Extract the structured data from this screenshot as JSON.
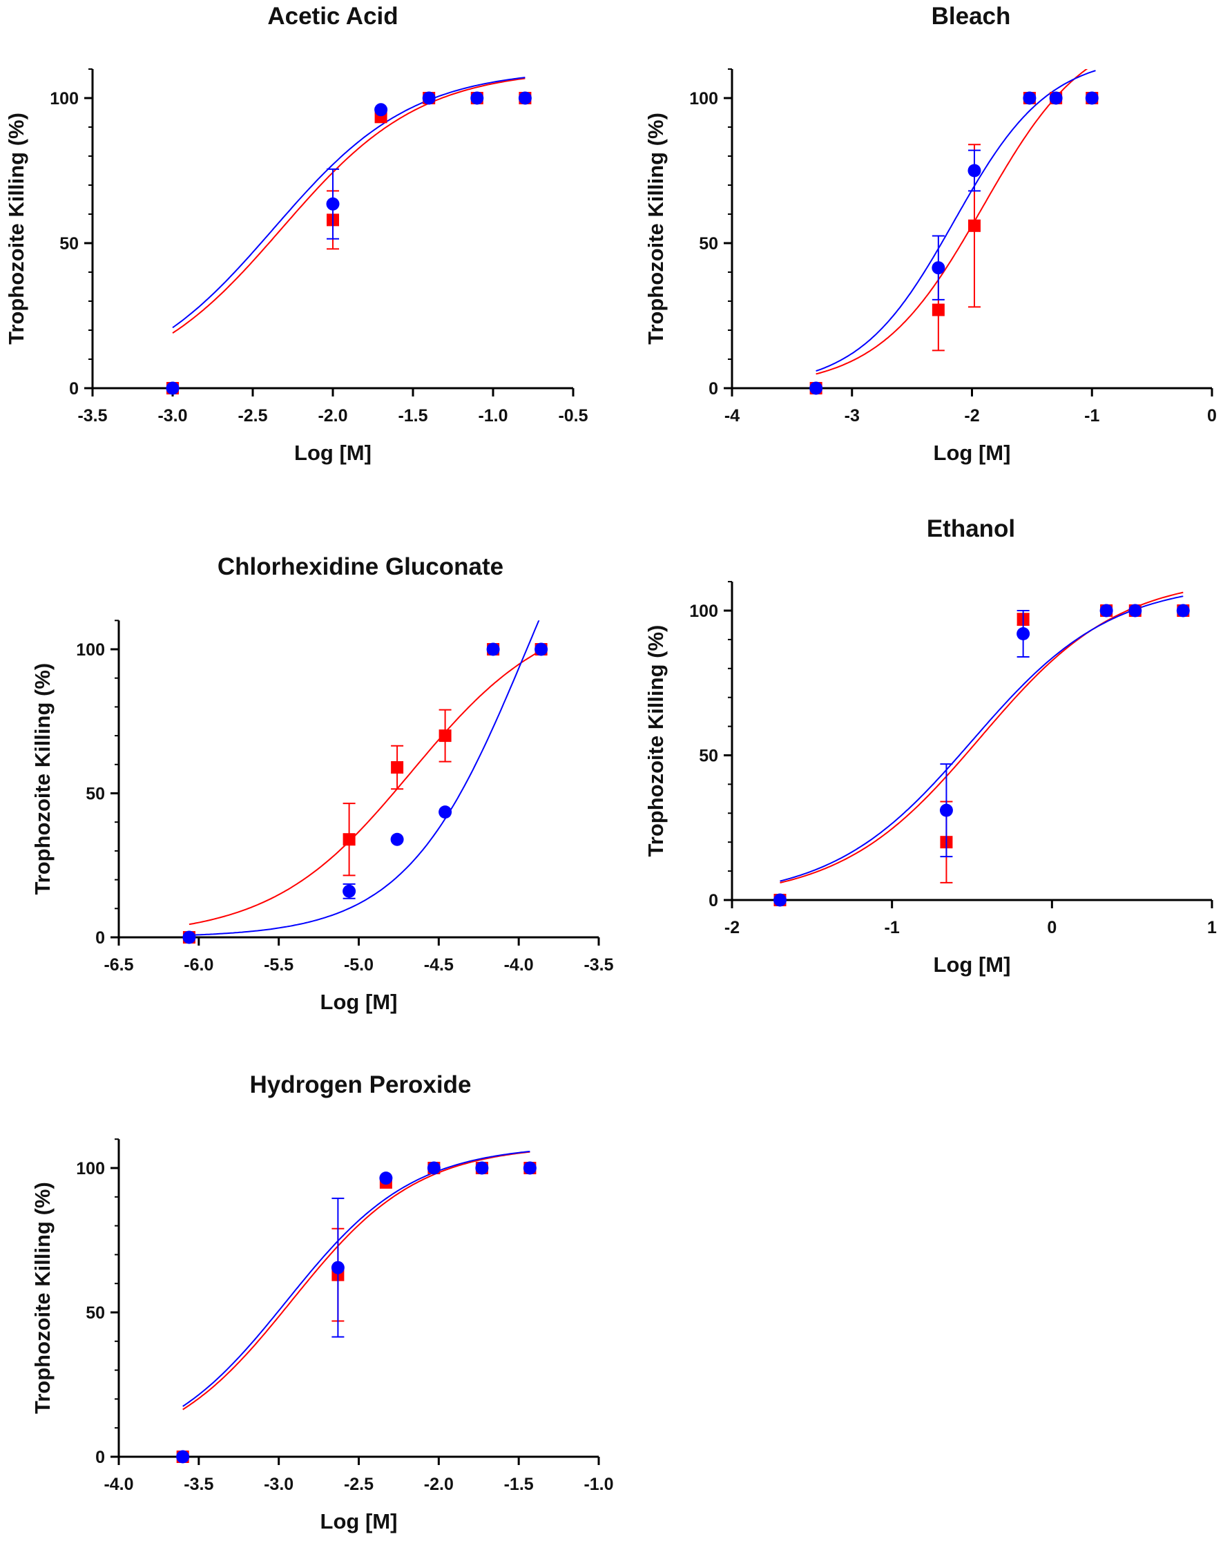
{
  "colors": {
    "series_a": "#ff0000",
    "series_b": "#0000ff",
    "axis": "#000000",
    "text": "#111111"
  },
  "chart_data": [
    {
      "type": "scatter",
      "title": "Acetic Acid",
      "xlabel": "Log [M]",
      "ylabel": "Trophozoite Killing (%)",
      "xlim": [
        -3.5,
        -0.5
      ],
      "ylim": [
        0,
        110
      ],
      "x_ticks": [
        -3.5,
        -3.0,
        -2.5,
        -2.0,
        -1.5,
        -1.0,
        -0.5
      ],
      "x_tick_labels": [
        "-3.5",
        "-3.0",
        "-2.5",
        "-2.0",
        "-1.5",
        "-1.0",
        "-0.5"
      ],
      "y_ticks": [
        0,
        50,
        100
      ],
      "y_tick_labels": [
        "0",
        "50",
        "100"
      ],
      "series": [
        {
          "name": "red",
          "marker": "square",
          "x": [
            -3.0,
            -2.0,
            -1.7,
            -1.4,
            -1.1,
            -0.8
          ],
          "y": [
            0,
            58,
            93.5,
            100,
            100,
            100
          ],
          "err": [
            0,
            10,
            0,
            0,
            0,
            0
          ],
          "fit_x": [
            -3.0,
            -0.8
          ],
          "fit": {
            "bottom": 0,
            "top": 110,
            "log_ec50": -2.32,
            "hill": 1.0
          }
        },
        {
          "name": "blue",
          "marker": "circle",
          "x": [
            -3.0,
            -2.0,
            -1.7,
            -1.4,
            -1.1,
            -0.8
          ],
          "y": [
            0,
            63.5,
            96,
            100,
            100,
            100
          ],
          "err": [
            0,
            12,
            0,
            0,
            0,
            0
          ],
          "fit_x": [
            -3.0,
            -0.8
          ],
          "fit": {
            "bottom": 0,
            "top": 110,
            "log_ec50": -2.37,
            "hill": 1.0
          }
        }
      ]
    },
    {
      "type": "scatter",
      "title": "Bleach",
      "xlabel": "Log [M]",
      "ylabel": "Trophozoite Killing (%)",
      "xlim": [
        -4,
        0
      ],
      "ylim": [
        0,
        110
      ],
      "x_ticks": [
        -4,
        -3,
        -2,
        -1,
        0
      ],
      "x_tick_labels": [
        "-4",
        "-3",
        "-2",
        "-1",
        "0"
      ],
      "y_ticks": [
        0,
        50,
        100
      ],
      "y_tick_labels": [
        "0",
        "50",
        "100"
      ],
      "series": [
        {
          "name": "red",
          "marker": "square",
          "x": [
            -3.3,
            -2.28,
            -1.98,
            -1.52,
            -1.3,
            -1.0
          ],
          "y": [
            0,
            27,
            56,
            100,
            100,
            100
          ],
          "err": [
            0,
            14,
            28,
            0,
            0,
            0
          ],
          "fit_x": [
            -3.3,
            -0.97
          ],
          "fit": {
            "bottom": 0,
            "top": 125,
            "log_ec50": -1.91,
            "hill": 1.0
          }
        },
        {
          "name": "blue",
          "marker": "circle",
          "x": [
            -3.3,
            -2.28,
            -1.98,
            -1.52,
            -1.3,
            -1.0
          ],
          "y": [
            0,
            41.5,
            75,
            100,
            100,
            100
          ],
          "err": [
            0,
            11,
            7,
            0,
            0,
            0
          ],
          "fit_x": [
            -3.3,
            -0.97
          ],
          "fit": {
            "bottom": 0,
            "top": 115,
            "log_ec50": -2.15,
            "hill": 1.1
          }
        }
      ]
    },
    {
      "type": "scatter",
      "title": "Chlorhexidine Gluconate",
      "xlabel": "Log [M]",
      "ylabel": "Trophozoite Killing (%)",
      "xlim": [
        -6.5,
        -3.5
      ],
      "ylim": [
        0,
        110
      ],
      "x_ticks": [
        -6.5,
        -6.0,
        -5.5,
        -5.0,
        -4.5,
        -4.0,
        -3.5
      ],
      "x_tick_labels": [
        "-6.5",
        "-6.0",
        "-5.5",
        "-5.0",
        "-4.5",
        "-4.0",
        "-3.5"
      ],
      "y_ticks": [
        0,
        50,
        100
      ],
      "y_tick_labels": [
        "0",
        "50",
        "100"
      ],
      "series": [
        {
          "name": "red",
          "marker": "square",
          "x": [
            -6.06,
            -5.06,
            -4.76,
            -4.46,
            -4.16,
            -3.86
          ],
          "y": [
            0,
            34,
            59,
            70,
            100,
            100
          ],
          "err": [
            0,
            12.5,
            7.5,
            9,
            0,
            0
          ],
          "fit_x": [
            -6.06,
            -3.86
          ],
          "fit": {
            "bottom": 0,
            "top": 115,
            "log_ec50": -4.67,
            "hill": 1.0
          }
        },
        {
          "name": "blue",
          "marker": "circle",
          "x": [
            -6.06,
            -5.06,
            -4.76,
            -4.46,
            -4.16,
            -3.86
          ],
          "y": [
            0,
            16,
            34,
            43.5,
            100,
            100
          ],
          "err": [
            0,
            2.5,
            0,
            0,
            0,
            0
          ],
          "fit_x": [
            -6.06,
            -3.86
          ],
          "fit": {
            "bottom": 0,
            "top": 200,
            "log_ec50": -3.95,
            "hill": 1.15
          }
        }
      ]
    },
    {
      "type": "scatter",
      "title": "Ethanol",
      "xlabel": "Log [M]",
      "ylabel": "Trophozoite Killing (%)",
      "xlim": [
        -2,
        1
      ],
      "ylim": [
        0,
        110
      ],
      "x_ticks": [
        -2,
        -1,
        0,
        1
      ],
      "x_tick_labels": [
        "-2",
        "-1",
        "0",
        "1"
      ],
      "y_ticks": [
        0,
        50,
        100
      ],
      "y_tick_labels": [
        "0",
        "50",
        "100"
      ],
      "series": [
        {
          "name": "red",
          "marker": "square",
          "x": [
            -1.7,
            -0.66,
            -0.18,
            0.34,
            0.52,
            0.82
          ],
          "y": [
            0,
            20,
            97,
            100,
            100,
            100
          ],
          "err": [
            0,
            14,
            2,
            0,
            0,
            0
          ],
          "fit_x": [
            -1.7,
            0.82
          ],
          "fit": {
            "bottom": 0,
            "top": 112,
            "log_ec50": -0.45,
            "hill": 1.0
          }
        },
        {
          "name": "blue",
          "marker": "circle",
          "x": [
            -1.7,
            -0.66,
            -0.18,
            0.34,
            0.52,
            0.82
          ],
          "y": [
            0,
            31,
            92,
            100,
            100,
            100
          ],
          "err": [
            0,
            16,
            8,
            0,
            0,
            0
          ],
          "fit_x": [
            -1.7,
            0.82
          ],
          "fit": {
            "bottom": 0,
            "top": 110,
            "log_ec50": -0.5,
            "hill": 1.0
          }
        }
      ]
    },
    {
      "type": "scatter",
      "title": "Hydrogen Peroxide",
      "xlabel": "Log [M]",
      "ylabel": "Trophozoite Killing (%)",
      "xlim": [
        -4.0,
        -1.0
      ],
      "ylim": [
        0,
        110
      ],
      "x_ticks": [
        -4.0,
        -3.5,
        -3.0,
        -2.5,
        -2.0,
        -1.5,
        -1.0
      ],
      "x_tick_labels": [
        "-4.0",
        "-3.5",
        "-3.0",
        "-2.5",
        "-2.0",
        "-1.5",
        "-1.0"
      ],
      "y_ticks": [
        0,
        50,
        100
      ],
      "y_tick_labels": [
        "0",
        "50",
        "100"
      ],
      "series": [
        {
          "name": "red",
          "marker": "square",
          "x": [
            -3.6,
            -2.63,
            -2.33,
            -2.03,
            -1.73,
            -1.43
          ],
          "y": [
            0,
            63,
            95,
            100,
            100,
            100
          ],
          "err": [
            0,
            16,
            0,
            0,
            0,
            0
          ],
          "fit_x": [
            -3.6,
            -1.43
          ],
          "fit": {
            "bottom": 0,
            "top": 108,
            "log_ec50": -2.92,
            "hill": 1.1
          }
        },
        {
          "name": "blue",
          "marker": "circle",
          "x": [
            -3.6,
            -2.63,
            -2.33,
            -2.03,
            -1.73,
            -1.43
          ],
          "y": [
            0,
            65.5,
            96.5,
            100,
            100,
            100
          ],
          "err": [
            0,
            24,
            0,
            0,
            0,
            0
          ],
          "fit_x": [
            -3.6,
            -1.43
          ],
          "fit": {
            "bottom": 0,
            "top": 108,
            "log_ec50": -2.95,
            "hill": 1.1
          }
        }
      ]
    }
  ]
}
